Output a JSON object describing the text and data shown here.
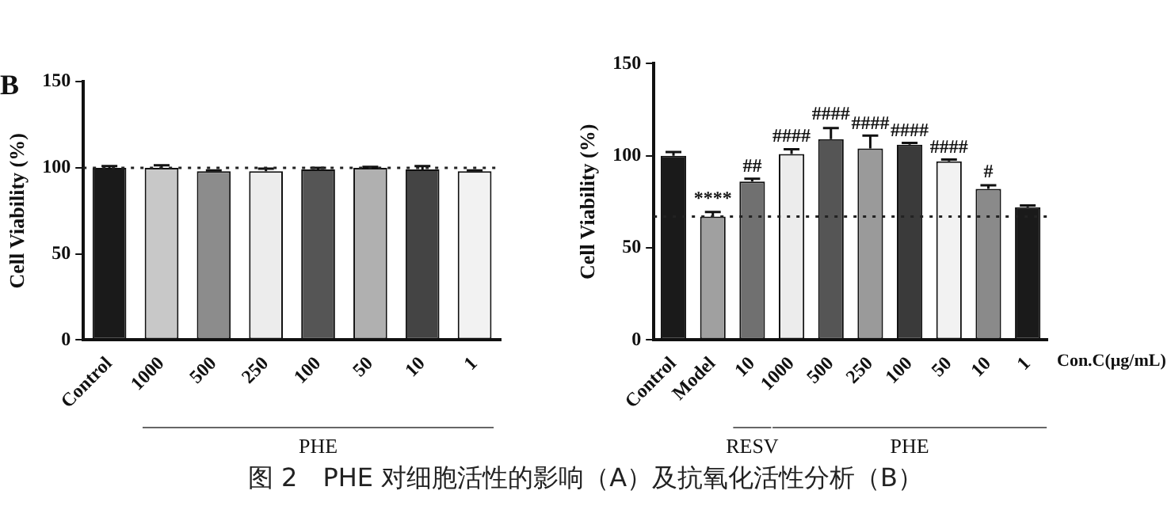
{
  "chart_data": [
    {
      "type": "bar",
      "title": "B",
      "ylabel": "Cell Viability (%)",
      "categories": [
        "Control",
        "1000",
        "500",
        "250",
        "100",
        "50",
        "10",
        "1"
      ],
      "values": [
        100,
        100,
        98,
        98,
        99,
        100,
        99,
        98
      ],
      "colors": [
        "#1a1a1a",
        "#c8c8c8",
        "#8c8c8c",
        "#ececec",
        "#555555",
        "#b0b0b0",
        "#444444",
        "#f2f2f2"
      ],
      "errors": [
        1,
        1.5,
        0.5,
        1.5,
        1,
        0.5,
        2,
        0.5
      ],
      "ylim": [
        0,
        150
      ],
      "yticks": [
        0,
        50,
        100,
        150
      ],
      "grid": false,
      "legend": false,
      "ref_lines": [
        {
          "axis": "y",
          "value": 100,
          "line_style": "dotted"
        }
      ],
      "annotations": [
        "PHE"
      ]
    },
    {
      "type": "bar",
      "ylabel": "Cell Viability (%)",
      "xlabel": "Con.C(μg/mL)",
      "categories": [
        "Control",
        "Model",
        "10",
        "1000",
        "500",
        "250",
        "100",
        "50",
        "10",
        "1"
      ],
      "values": [
        100,
        67,
        86,
        101,
        109,
        104,
        106,
        97,
        82,
        72
      ],
      "colors": [
        "#1a1a1a",
        "#a0a0a0",
        "#707070",
        "#ececec",
        "#555555",
        "#9a9a9a",
        "#3a3a3a",
        "#f2f2f2",
        "#8a8a8a",
        "#1a1a1a"
      ],
      "errors": [
        2,
        2.5,
        1.5,
        2.5,
        6,
        7,
        1,
        1,
        2,
        1
      ],
      "ylim": [
        0,
        150
      ],
      "yticks": [
        0,
        50,
        100,
        150
      ],
      "grid": false,
      "legend": false,
      "ref_lines": [
        {
          "axis": "y",
          "value": 67,
          "line_style": "dotted"
        }
      ],
      "annotations": [
        "RESV",
        "PHE",
        {
          "text": "****",
          "x": "Model",
          "y": 71
        },
        {
          "text": "##",
          "x": "10",
          "y": 89
        },
        {
          "text": "####",
          "x": "1000",
          "y": 105
        },
        {
          "text": "####",
          "x": "500",
          "y": 117
        },
        {
          "text": "####",
          "x": "250",
          "y": 112
        },
        {
          "text": "####",
          "x": "100",
          "y": 108
        },
        {
          "text": "####",
          "x": "50",
          "y": 99
        },
        "#",
        "图 2　PHE 对细胞活性的影响（A）及抗氧化活性分析（B）"
      ]
    }
  ]
}
